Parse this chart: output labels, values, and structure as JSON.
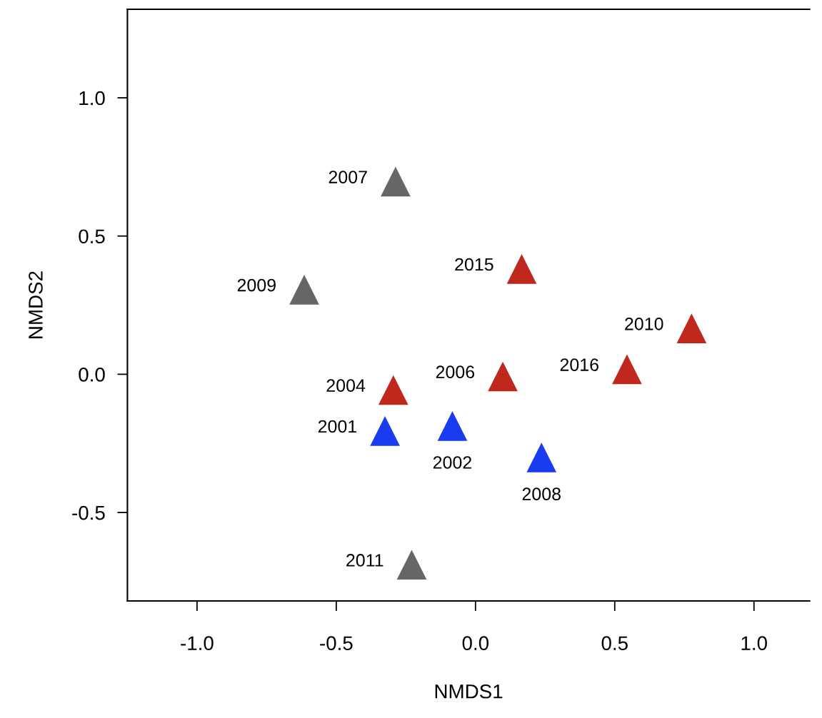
{
  "chart_data": {
    "type": "scatter",
    "xlabel": "NMDS1",
    "ylabel": "NMDS2",
    "marker": "triangle",
    "grid": false,
    "legend": false,
    "xlim": [
      -1.25,
      1.2
    ],
    "ylim": [
      -0.82,
      1.32
    ],
    "xticks": [
      {
        "value": -1,
        "label": "-1.0"
      },
      -0.5,
      {
        "value": 0,
        "label": "0.0"
      },
      0.5,
      {
        "value": 1,
        "label": "1.0"
      }
    ],
    "yticks": [
      -0.5,
      {
        "value": 0,
        "label": "0.0"
      },
      0.5,
      {
        "value": 1,
        "label": "1.0"
      }
    ],
    "series": [
      {
        "color": "#666666",
        "x": [
          -0.287,
          -0.615,
          -0.229
        ],
        "values": [
          0.697,
          0.306,
          -0.689
        ]
      },
      {
        "color": "#c0281e",
        "x": [
          0.166,
          0.776,
          0.544,
          -0.295,
          0.098
        ],
        "values": [
          0.381,
          0.166,
          0.018,
          -0.057,
          -0.008
        ]
      },
      {
        "color": "#1a3cf0",
        "x": [
          -0.325,
          -0.083,
          0.237
        ],
        "values": [
          -0.205,
          -0.187,
          -0.301
        ]
      }
    ],
    "annotations": [
      {
        "text": "2007",
        "x": -0.287,
        "y": 0.697
      },
      {
        "text": "2009",
        "x": -0.615,
        "y": 0.306
      },
      {
        "text": "2011",
        "x": -0.229,
        "y": -0.689
      },
      {
        "text": "2015",
        "x": 0.166,
        "y": 0.381
      },
      {
        "text": "2010",
        "x": 0.776,
        "y": 0.166
      },
      {
        "text": "2016",
        "x": 0.544,
        "y": 0.018
      },
      {
        "text": "2004",
        "x": -0.295,
        "y": -0.057
      },
      {
        "text": "2006",
        "x": 0.098,
        "y": -0.008
      },
      {
        "text": "2001",
        "x": -0.325,
        "y": -0.205
      },
      {
        "text": "2002",
        "x": -0.083,
        "y": -0.187
      },
      {
        "text": "2008",
        "x": 0.237,
        "y": -0.301
      }
    ]
  }
}
